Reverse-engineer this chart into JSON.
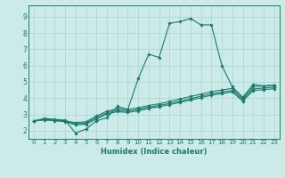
{
  "xlabel": "Humidex (Indice chaleur)",
  "bg_color": "#cceae7",
  "grid_color": "#aad4d0",
  "line_color": "#1a7a6e",
  "xlim": [
    -0.5,
    23.5
  ],
  "ylim": [
    1.5,
    9.7
  ],
  "xticks": [
    0,
    1,
    2,
    3,
    4,
    5,
    6,
    7,
    8,
    9,
    10,
    11,
    12,
    13,
    14,
    15,
    16,
    17,
    18,
    19,
    20,
    21,
    22,
    23
  ],
  "yticks": [
    2,
    3,
    4,
    5,
    6,
    7,
    8,
    9
  ],
  "line1_x": [
    0,
    1,
    2,
    3,
    4,
    5,
    6,
    7,
    8,
    9,
    10,
    11,
    12,
    13,
    14,
    15,
    16,
    17,
    18,
    19,
    20,
    21,
    22,
    23
  ],
  "line1_y": [
    2.6,
    2.75,
    2.7,
    2.65,
    1.85,
    2.1,
    2.6,
    2.8,
    3.5,
    3.3,
    5.2,
    6.7,
    6.5,
    8.6,
    8.7,
    8.9,
    8.5,
    8.5,
    6.0,
    4.7,
    4.05,
    4.85,
    4.75,
    4.8
  ],
  "line2_x": [
    0,
    1,
    2,
    3,
    4,
    5,
    6,
    7,
    8,
    9,
    10,
    11,
    12,
    13,
    14,
    15,
    16,
    17,
    18,
    19,
    20,
    21,
    22,
    23
  ],
  "line2_y": [
    2.6,
    2.7,
    2.65,
    2.6,
    2.5,
    2.55,
    2.9,
    3.2,
    3.35,
    3.3,
    3.4,
    3.55,
    3.65,
    3.8,
    3.95,
    4.1,
    4.25,
    4.4,
    4.5,
    4.6,
    4.0,
    4.7,
    4.75,
    4.8
  ],
  "line3_x": [
    0,
    1,
    2,
    3,
    4,
    5,
    6,
    7,
    8,
    9,
    10,
    11,
    12,
    13,
    14,
    15,
    16,
    17,
    18,
    19,
    20,
    21,
    22,
    23
  ],
  "line3_y": [
    2.6,
    2.68,
    2.63,
    2.58,
    2.42,
    2.47,
    2.8,
    3.1,
    3.25,
    3.2,
    3.3,
    3.45,
    3.55,
    3.68,
    3.82,
    3.97,
    4.12,
    4.27,
    4.37,
    4.47,
    3.9,
    4.57,
    4.62,
    4.68
  ],
  "line4_x": [
    0,
    1,
    2,
    3,
    4,
    5,
    6,
    7,
    8,
    9,
    10,
    11,
    12,
    13,
    14,
    15,
    16,
    17,
    18,
    19,
    20,
    21,
    22,
    23
  ],
  "line4_y": [
    2.6,
    2.66,
    2.61,
    2.56,
    2.35,
    2.4,
    2.72,
    3.02,
    3.17,
    3.12,
    3.22,
    3.37,
    3.47,
    3.6,
    3.74,
    3.88,
    4.03,
    4.18,
    4.28,
    4.38,
    3.82,
    4.47,
    4.52,
    4.58
  ]
}
